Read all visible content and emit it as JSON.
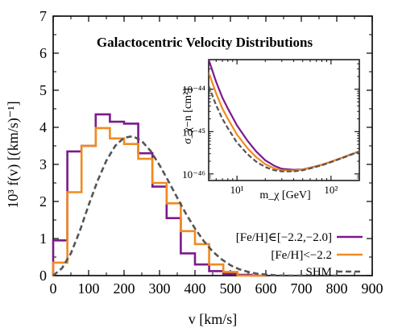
{
  "chart_data": [
    {
      "type": "line",
      "title": "Galactocentric Velocity Distributions",
      "xlabel": "v [km/s]",
      "ylabel": "10³ f(v) [(km/s)⁻¹]",
      "xlim": [
        0,
        900
      ],
      "ylim": [
        0,
        7
      ],
      "x_ticks": [
        "0",
        "100",
        "200",
        "300",
        "400",
        "500",
        "600",
        "700",
        "800",
        "900"
      ],
      "y_ticks": [
        "0",
        "1",
        "2",
        "3",
        "4",
        "5",
        "6",
        "7"
      ],
      "grid": false,
      "legend_position": "bottom-right",
      "bin_edges": [
        0,
        40,
        80,
        120,
        160,
        200,
        240,
        280,
        320,
        360,
        400,
        440,
        480,
        520,
        560,
        600
      ],
      "series": [
        {
          "name": "[Fe/H]∈[−2.2,−2.0]",
          "color": "#7b1a8c",
          "style": "step",
          "values": [
            0.95,
            3.35,
            3.5,
            4.35,
            4.15,
            4.1,
            3.3,
            2.4,
            1.55,
            0.6,
            0.3,
            0.12,
            0.05,
            0.02,
            0.0
          ]
        },
        {
          "name": "[Fe/H]<−2.2",
          "color": "#f28a1e",
          "style": "step",
          "values": [
            0.35,
            2.25,
            3.5,
            3.98,
            3.7,
            3.55,
            3.15,
            2.5,
            1.95,
            1.2,
            0.85,
            0.3,
            0.1,
            0.0,
            0.0
          ]
        },
        {
          "name": "SHM",
          "color": "#555555",
          "style": "dashed",
          "x": [
            0,
            25,
            50,
            75,
            100,
            125,
            150,
            175,
            200,
            225,
            250,
            275,
            300,
            325,
            350,
            375,
            400,
            425,
            450,
            475,
            500,
            525,
            550,
            575,
            600,
            625,
            650,
            700,
            750,
            800
          ],
          "values": [
            0.0,
            0.2,
            0.6,
            1.2,
            1.9,
            2.55,
            3.1,
            3.5,
            3.72,
            3.76,
            3.63,
            3.36,
            2.98,
            2.55,
            2.1,
            1.66,
            1.27,
            0.93,
            0.65,
            0.44,
            0.28,
            0.17,
            0.1,
            0.05,
            0.03,
            0.01,
            0.0,
            0.0,
            0.0,
            0.0
          ]
        }
      ]
    },
    {
      "type": "line",
      "title": "",
      "xlabel": "m_χ [GeV]",
      "ylabel": "σ_χ−n [cm²]",
      "x_scale": "log",
      "y_scale": "log",
      "xlim": [
        5,
        200
      ],
      "ylim": [
        7e-47,
        5e-44
      ],
      "x_ticks": [
        "10¹",
        "10²"
      ],
      "y_ticks": [
        "10⁻⁴⁴",
        "10⁻⁴⁵",
        "10⁻⁴⁶"
      ],
      "grid": false,
      "series": [
        {
          "name": "[Fe/H]∈[−2.2,−2.0]",
          "color": "#7b1a8c",
          "style": "solid",
          "x": [
            5,
            6,
            7,
            8,
            10,
            13,
            16,
            20,
            25,
            30,
            40,
            50,
            60,
            80,
            100,
            130,
            160,
            200
          ],
          "values": [
            5e-44,
            1.5e-44,
            6.3e-45,
            3.5e-45,
            1.4e-45,
            6e-46,
            3.4e-46,
            2.1e-46,
            1.55e-46,
            1.32e-46,
            1.25e-46,
            1.28e-46,
            1.4e-46,
            1.65e-46,
            1.95e-46,
            2.4e-46,
            2.85e-46,
            3.4e-46
          ]
        },
        {
          "name": "[Fe/H]<−2.2",
          "color": "#f28a1e",
          "style": "solid",
          "x": [
            5,
            6,
            7,
            8,
            10,
            13,
            16,
            20,
            25,
            30,
            40,
            50,
            60,
            80,
            100,
            130,
            160,
            200
          ],
          "values": [
            2.5e-44,
            8e-45,
            3.5e-45,
            2e-45,
            8.5e-46,
            4e-46,
            2.5e-46,
            1.7e-46,
            1.35e-46,
            1.22e-46,
            1.2e-46,
            1.27e-46,
            1.38e-46,
            1.63e-46,
            1.93e-46,
            2.38e-46,
            2.83e-46,
            3.38e-46
          ]
        },
        {
          "name": "SHM",
          "color": "#555555",
          "style": "dashed",
          "x": [
            5,
            6,
            7,
            8,
            10,
            13,
            16,
            20,
            25,
            30,
            40,
            50,
            60,
            80,
            100,
            130,
            160,
            200
          ],
          "values": [
            1.2e-44,
            4.2e-45,
            2e-45,
            1.2e-45,
            5.5e-46,
            2.9e-46,
            1.95e-46,
            1.45e-46,
            1.22e-46,
            1.15e-46,
            1.15e-46,
            1.22e-46,
            1.35e-46,
            1.6e-46,
            1.9e-46,
            2.35e-46,
            2.8e-46,
            3.35e-46
          ]
        }
      ]
    }
  ]
}
